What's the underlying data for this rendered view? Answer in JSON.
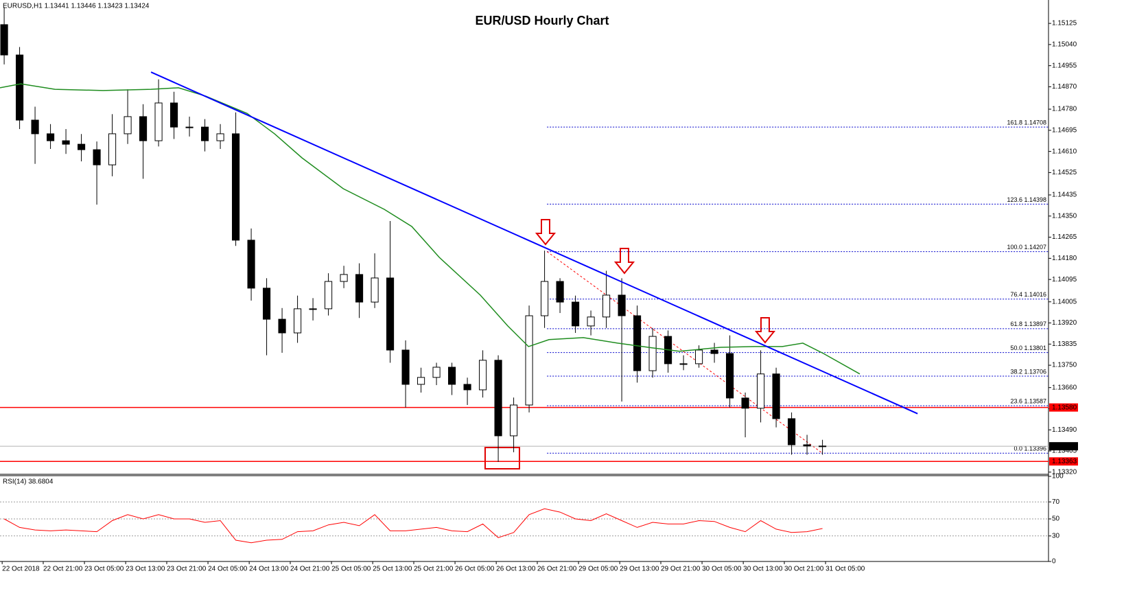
{
  "chart_data": [
    {
      "type": "candlestick",
      "title": "EUR/USD Hourly Chart",
      "subtitle": "EURUSD,H1  1.13441 1.13446 1.13423 1.13424",
      "up_color": "#ffffff",
      "down_color": "#000000",
      "x": [
        0,
        1,
        2,
        3,
        4,
        5,
        6,
        7,
        8,
        9,
        10,
        11,
        12,
        13,
        14,
        15,
        16,
        17,
        18,
        19,
        20,
        21,
        22,
        23,
        24,
        25,
        26,
        27,
        28,
        29,
        30,
        31,
        32,
        33,
        34,
        35,
        36,
        37,
        38,
        39,
        40,
        41,
        42,
        43,
        44,
        45,
        46,
        47,
        48,
        49,
        50,
        51,
        52,
        53
      ],
      "open": [
        1.1512,
        1.14998,
        1.14736,
        1.14681,
        1.14653,
        1.14639,
        1.14617,
        1.14556,
        1.14681,
        1.1475,
        1.14653,
        1.14805,
        1.14708,
        1.14708,
        1.14653,
        1.14681,
        1.14253,
        1.1406,
        1.13935,
        1.1388,
        1.13977,
        1.13977,
        1.14087,
        1.14115,
        1.14004,
        1.14101,
        1.13811,
        1.13673,
        1.13701,
        1.13742,
        1.13673,
        1.13651,
        1.1377,
        1.13466,
        1.1359,
        1.13949,
        1.14087,
        1.14004,
        1.13908,
        1.13944,
        1.14032,
        1.13949,
        1.13728,
        1.13866,
        1.13756,
        1.13756,
        1.13811,
        1.13797,
        1.13618,
        1.13577,
        1.13715,
        1.13535,
        1.1343,
        1.13425
      ],
      "high": [
        1.1519,
        1.1503,
        1.1479,
        1.1472,
        1.147,
        1.1468,
        1.1465,
        1.1476,
        1.1486,
        1.148,
        1.149,
        1.1485,
        1.1475,
        1.1474,
        1.1472,
        1.14767,
        1.143,
        1.141,
        1.1398,
        1.1403,
        1.1402,
        1.1412,
        1.1415,
        1.1416,
        1.142,
        1.1433,
        1.1385,
        1.1374,
        1.1376,
        1.1376,
        1.137,
        1.1381,
        1.1379,
        1.1362,
        1.1399,
        1.14211,
        1.141,
        1.1403,
        1.1397,
        1.1413,
        1.141,
        1.1399,
        1.139,
        1.1389,
        1.1379,
        1.1383,
        1.1384,
        1.1387,
        1.1364,
        1.1381,
        1.1374,
        1.1356,
        1.1347,
        1.1345
      ],
      "low": [
        1.1496,
        1.147,
        1.1456,
        1.1462,
        1.146,
        1.1457,
        1.14396,
        1.1451,
        1.1464,
        1.145,
        1.1463,
        1.1466,
        1.1467,
        1.1461,
        1.1462,
        1.1423,
        1.1401,
        1.1379,
        1.138,
        1.1384,
        1.1393,
        1.1395,
        1.1406,
        1.1394,
        1.1398,
        1.1376,
        1.1358,
        1.1364,
        1.1367,
        1.1363,
        1.1359,
        1.1362,
        1.13361,
        1.134,
        1.1356,
        1.139,
        1.1396,
        1.1388,
        1.1387,
        1.139,
        1.13604,
        1.1368,
        1.137,
        1.1372,
        1.1373,
        1.1374,
        1.1376,
        1.1358,
        1.1346,
        1.1352,
        1.135,
        1.1339,
        1.1339,
        1.1339
      ],
      "close": [
        1.14998,
        1.14736,
        1.14681,
        1.14653,
        1.14639,
        1.14617,
        1.14556,
        1.14681,
        1.1475,
        1.14653,
        1.14805,
        1.14708,
        1.14708,
        1.14653,
        1.14681,
        1.14253,
        1.1406,
        1.13935,
        1.1388,
        1.13977,
        1.13977,
        1.14087,
        1.14115,
        1.14004,
        1.14101,
        1.13811,
        1.13673,
        1.13701,
        1.13742,
        1.13673,
        1.13651,
        1.1377,
        1.13466,
        1.1359,
        1.13949,
        1.14087,
        1.14004,
        1.13908,
        1.13944,
        1.14032,
        1.13949,
        1.13728,
        1.13866,
        1.13756,
        1.13756,
        1.13811,
        1.13797,
        1.13618,
        1.13577,
        1.13715,
        1.13535,
        1.1343,
        1.13425,
        1.13424
      ],
      "moving_average": {
        "color": "#1e8c1e",
        "x": [
          -0.27,
          1.07,
          3.29,
          6.4,
          9.51,
          11.29,
          13.07,
          15.73,
          17.51,
          19.29,
          21.96,
          24.62,
          26.4,
          28.18,
          30.84,
          32.62,
          33.96,
          35.29,
          37.51,
          39.73,
          41.96,
          43.73,
          46.4,
          48.62,
          50.4,
          51.73,
          53.07,
          55.42
        ],
        "values": [
          1.14866,
          1.14882,
          1.1486,
          1.14855,
          1.1486,
          1.14866,
          1.14832,
          1.14763,
          1.14681,
          1.14584,
          1.1446,
          1.14377,
          1.14308,
          1.14184,
          1.14032,
          1.13908,
          1.13825,
          1.13853,
          1.13861,
          1.13839,
          1.1382,
          1.13806,
          1.13822,
          1.13825,
          1.13825,
          1.13839,
          1.13797,
          1.13715
        ]
      },
      "trendline": {
        "color": "#0000ff",
        "x": [
          9.51,
          59.16
        ],
        "values": [
          1.14929,
          1.13555
        ]
      },
      "fibonacci": {
        "color": "#0000cc",
        "x_start": 35.16,
        "levels": [
          {
            "value": 1.14708,
            "label": "161.8 1.14708"
          },
          {
            "value": 1.14398,
            "label": "123.6 1.14398"
          },
          {
            "value": 1.14207,
            "label": "100.0 1.14207"
          },
          {
            "value": 1.14016,
            "label": "76.4 1.14016"
          },
          {
            "value": 1.13897,
            "label": "61.8 1.13897"
          },
          {
            "value": 1.13801,
            "label": "50.0 1.13801"
          },
          {
            "value": 1.13706,
            "label": "38.2 1.13706"
          },
          {
            "value": 1.13587,
            "label": "23.6 1.13587"
          },
          {
            "value": 1.13396,
            "label": "0.0 1.13396"
          }
        ]
      },
      "levels": [
        {
          "value": 1.1358,
          "label": "1.13580",
          "color": "#ff0000"
        },
        {
          "value": 1.13363,
          "label": "1.13363",
          "color": "#ff0000"
        }
      ],
      "last_price": {
        "value": 1.13424,
        "label": "1.13424",
        "color": "#000000"
      },
      "xlim": [
        -0.27,
        67.64
      ],
      "xticks": [
        {
          "value": -0.13,
          "label": "22 Oct 2018"
        },
        {
          "value": 2.53,
          "label": "22 Oct 21:00"
        },
        {
          "value": 5.2,
          "label": "23 Oct 05:00"
        },
        {
          "value": 7.87,
          "label": "23 Oct 13:00"
        },
        {
          "value": 10.53,
          "label": "23 Oct 21:00"
        },
        {
          "value": 13.2,
          "label": "24 Oct 05:00"
        },
        {
          "value": 15.87,
          "label": "24 Oct 13:00"
        },
        {
          "value": 18.53,
          "label": "24 Oct 21:00"
        },
        {
          "value": 21.2,
          "label": "25 Oct 05:00"
        },
        {
          "value": 23.87,
          "label": "25 Oct 13:00"
        },
        {
          "value": 26.53,
          "label": "25 Oct 21:00"
        },
        {
          "value": 29.2,
          "label": "26 Oct 05:00"
        },
        {
          "value": 31.87,
          "label": "26 Oct 13:00"
        },
        {
          "value": 34.53,
          "label": "26 Oct 21:00"
        },
        {
          "value": 37.2,
          "label": "29 Oct 05:00"
        },
        {
          "value": 39.87,
          "label": "29 Oct 13:00"
        },
        {
          "value": 42.53,
          "label": "29 Oct 21:00"
        },
        {
          "value": 45.2,
          "label": "30 Oct 05:00"
        },
        {
          "value": 47.87,
          "label": "30 Oct 13:00"
        },
        {
          "value": 50.53,
          "label": "30 Oct 21:00"
        },
        {
          "value": 53.2,
          "label": "31 Oct 05:00"
        }
      ],
      "ylim": [
        1.13314,
        1.15186
      ],
      "yticks": [
        1.15125,
        {
          "value": 1.1504,
          "label": "1.15040"
        },
        1.14955,
        {
          "value": 1.1487,
          "label": "1.14870"
        },
        {
          "value": 1.1478,
          "label": "1.14780"
        },
        1.14695,
        {
          "value": 1.1461,
          "label": "1.14610"
        },
        1.14525,
        1.14435,
        {
          "value": 1.1435,
          "label": "1.14350"
        },
        1.14265,
        {
          "value": 1.1418,
          "label": "1.14180"
        },
        1.14095,
        1.14005,
        {
          "value": 1.1392,
          "label": "1.13920"
        },
        1.13835,
        {
          "value": 1.1375,
          "label": "1.13750"
        },
        {
          "value": 1.1366,
          "label": "1.13660"
        },
        1.13575,
        {
          "value": 1.1349,
          "label": "1.13490"
        },
        1.13405,
        {
          "value": 1.1332,
          "label": "1.13320"
        }
      ]
    },
    {
      "type": "line",
      "title": "RSI(14) 38.6804",
      "color": "#ff0000",
      "x": [
        0,
        1,
        2,
        3,
        4,
        5,
        6,
        7,
        8,
        9,
        10,
        11,
        12,
        13,
        14,
        15,
        16,
        17,
        18,
        19,
        20,
        21,
        22,
        23,
        24,
        25,
        26,
        27,
        28,
        29,
        30,
        31,
        32,
        33,
        34,
        35,
        36,
        37,
        38,
        39,
        40,
        41,
        42,
        43,
        44,
        45,
        46,
        47,
        48,
        49,
        50,
        51,
        52,
        53
      ],
      "values": [
        50,
        40,
        37,
        36,
        37,
        36,
        35,
        48,
        55,
        50,
        55,
        50,
        50,
        46,
        48,
        25,
        22,
        25,
        26,
        35,
        36,
        43,
        46,
        42,
        55,
        36,
        36,
        38,
        40,
        36,
        35,
        44,
        28,
        34,
        55,
        62,
        58,
        50,
        48,
        56,
        48,
        40,
        46,
        44,
        44,
        48,
        47,
        40,
        35,
        48,
        38,
        34,
        35,
        38.6804
      ],
      "xlim": [
        -0.27,
        67.64
      ],
      "ylim": [
        0,
        100
      ],
      "yticks": [
        100,
        70,
        50,
        30,
        0
      ],
      "grid": true
    }
  ]
}
